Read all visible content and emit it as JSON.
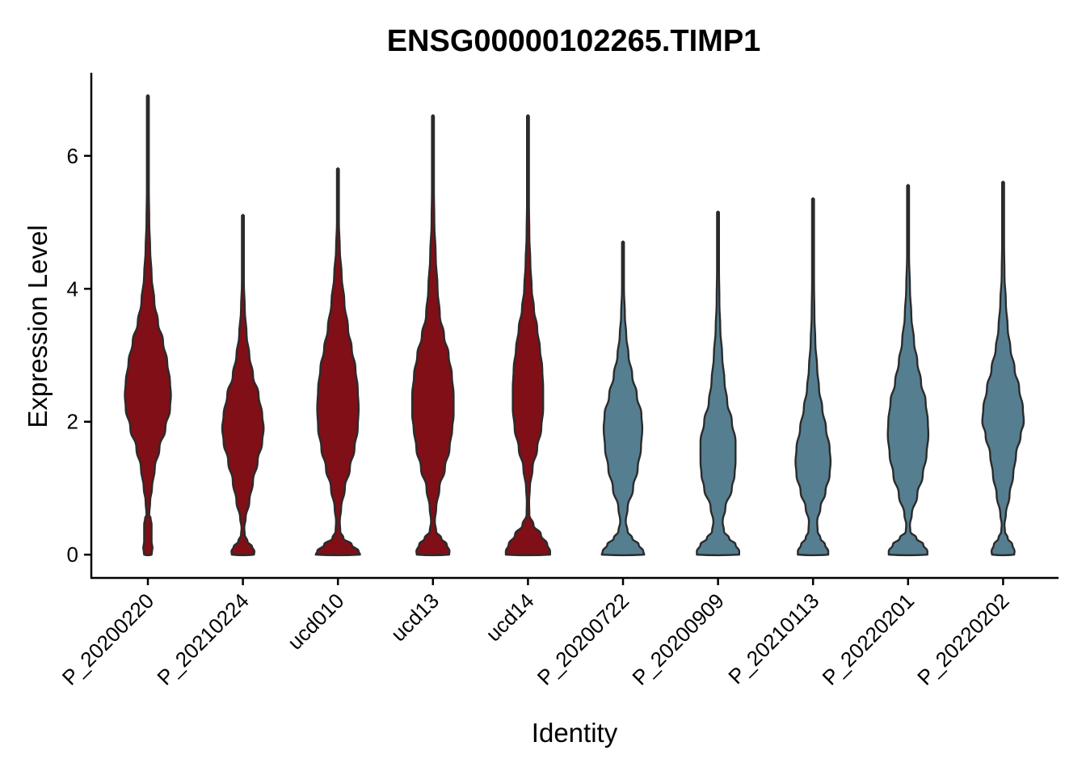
{
  "chart_data": {
    "type": "violin",
    "title": "ENSG00000102265.TIMP1",
    "xlabel": "Identity",
    "ylabel": "Expression Level",
    "ylim": [
      -0.35,
      7.25
    ],
    "y_ticks": [
      0,
      2,
      4,
      6
    ],
    "grid": false,
    "legend": "none",
    "groups": [
      {
        "name": "P_20200220",
        "color": "#800f17",
        "max": 6.9,
        "profile": [
          [
            0,
            0.08
          ],
          [
            0.05,
            0.09
          ],
          [
            0.1,
            0.1
          ],
          [
            0.2,
            0.08
          ],
          [
            0.3,
            0.08
          ],
          [
            0.45,
            0.08
          ],
          [
            0.55,
            0.06
          ],
          [
            0.6,
            0.03
          ],
          [
            0.8,
            0.05
          ],
          [
            1.0,
            0.09
          ],
          [
            1.3,
            0.15
          ],
          [
            1.6,
            0.25
          ],
          [
            1.9,
            0.38
          ],
          [
            2.2,
            0.48
          ],
          [
            2.4,
            0.5
          ],
          [
            2.6,
            0.48
          ],
          [
            2.9,
            0.42
          ],
          [
            3.2,
            0.33
          ],
          [
            3.5,
            0.22
          ],
          [
            3.8,
            0.14
          ],
          [
            4.2,
            0.08
          ],
          [
            4.6,
            0.05
          ],
          [
            5.0,
            0.03
          ],
          [
            5.5,
            0.02
          ],
          [
            6.0,
            0.01
          ],
          [
            6.5,
            0.008
          ],
          [
            6.9,
            0.004
          ]
        ]
      },
      {
        "name": "P_20210224",
        "color": "#800f17",
        "max": 5.1,
        "profile": [
          [
            0,
            0.24
          ],
          [
            0.05,
            0.25
          ],
          [
            0.12,
            0.2
          ],
          [
            0.2,
            0.1
          ],
          [
            0.3,
            0.04
          ],
          [
            0.4,
            0.03
          ],
          [
            0.55,
            0.06
          ],
          [
            0.8,
            0.14
          ],
          [
            1.1,
            0.22
          ],
          [
            1.4,
            0.32
          ],
          [
            1.7,
            0.42
          ],
          [
            1.9,
            0.45
          ],
          [
            2.1,
            0.42
          ],
          [
            2.4,
            0.34
          ],
          [
            2.7,
            0.22
          ],
          [
            3.0,
            0.14
          ],
          [
            3.3,
            0.08
          ],
          [
            3.7,
            0.04
          ],
          [
            4.1,
            0.02
          ],
          [
            4.5,
            0.01
          ],
          [
            5.1,
            0.004
          ]
        ]
      },
      {
        "name": "ucd010",
        "color": "#800f17",
        "max": 5.8,
        "profile": [
          [
            0,
            0.48
          ],
          [
            0.05,
            0.45
          ],
          [
            0.15,
            0.3
          ],
          [
            0.25,
            0.12
          ],
          [
            0.35,
            0.05
          ],
          [
            0.5,
            0.04
          ],
          [
            0.7,
            0.07
          ],
          [
            1.0,
            0.15
          ],
          [
            1.3,
            0.26
          ],
          [
            1.6,
            0.36
          ],
          [
            1.9,
            0.43
          ],
          [
            2.2,
            0.45
          ],
          [
            2.5,
            0.43
          ],
          [
            2.8,
            0.38
          ],
          [
            3.1,
            0.3
          ],
          [
            3.4,
            0.22
          ],
          [
            3.8,
            0.14
          ],
          [
            4.2,
            0.08
          ],
          [
            4.6,
            0.04
          ],
          [
            5.0,
            0.02
          ],
          [
            5.4,
            0.01
          ],
          [
            5.8,
            0.004
          ]
        ]
      },
      {
        "name": "ucd13",
        "color": "#800f17",
        "max": 6.6,
        "profile": [
          [
            0,
            0.35
          ],
          [
            0.05,
            0.36
          ],
          [
            0.15,
            0.3
          ],
          [
            0.25,
            0.18
          ],
          [
            0.35,
            0.07
          ],
          [
            0.5,
            0.04
          ],
          [
            0.7,
            0.07
          ],
          [
            1.0,
            0.14
          ],
          [
            1.3,
            0.26
          ],
          [
            1.6,
            0.36
          ],
          [
            1.9,
            0.42
          ],
          [
            2.1,
            0.45
          ],
          [
            2.4,
            0.45
          ],
          [
            2.7,
            0.41
          ],
          [
            3.0,
            0.34
          ],
          [
            3.3,
            0.24
          ],
          [
            3.6,
            0.15
          ],
          [
            4.0,
            0.1
          ],
          [
            4.5,
            0.06
          ],
          [
            5.0,
            0.03
          ],
          [
            5.5,
            0.02
          ],
          [
            6.0,
            0.01
          ],
          [
            6.6,
            0.004
          ]
        ]
      },
      {
        "name": "ucd14",
        "color": "#800f17",
        "max": 6.6,
        "profile": [
          [
            0,
            0.48
          ],
          [
            0.05,
            0.48
          ],
          [
            0.15,
            0.42
          ],
          [
            0.3,
            0.28
          ],
          [
            0.45,
            0.12
          ],
          [
            0.6,
            0.03
          ],
          [
            0.8,
            0.025
          ],
          [
            1.0,
            0.04
          ],
          [
            1.3,
            0.1
          ],
          [
            1.6,
            0.2
          ],
          [
            1.9,
            0.29
          ],
          [
            2.2,
            0.33
          ],
          [
            2.5,
            0.33
          ],
          [
            2.8,
            0.31
          ],
          [
            3.1,
            0.26
          ],
          [
            3.4,
            0.2
          ],
          [
            3.7,
            0.13
          ],
          [
            4.0,
            0.08
          ],
          [
            4.4,
            0.05
          ],
          [
            4.8,
            0.03
          ],
          [
            5.3,
            0.02
          ],
          [
            5.8,
            0.01
          ],
          [
            6.6,
            0.004
          ]
        ]
      },
      {
        "name": "P_20200722",
        "color": "#557f91",
        "max": 4.7,
        "profile": [
          [
            0,
            0.46
          ],
          [
            0.05,
            0.44
          ],
          [
            0.15,
            0.34
          ],
          [
            0.25,
            0.2
          ],
          [
            0.35,
            0.1
          ],
          [
            0.5,
            0.06
          ],
          [
            0.7,
            0.1
          ],
          [
            1.0,
            0.22
          ],
          [
            1.3,
            0.32
          ],
          [
            1.6,
            0.39
          ],
          [
            1.9,
            0.42
          ],
          [
            2.1,
            0.4
          ],
          [
            2.4,
            0.3
          ],
          [
            2.7,
            0.2
          ],
          [
            3.0,
            0.12
          ],
          [
            3.3,
            0.07
          ],
          [
            3.6,
            0.04
          ],
          [
            4.0,
            0.02
          ],
          [
            4.7,
            0.004
          ]
        ]
      },
      {
        "name": "P_20200909",
        "color": "#557f91",
        "max": 5.15,
        "profile": [
          [
            0,
            0.46
          ],
          [
            0.05,
            0.46
          ],
          [
            0.15,
            0.38
          ],
          [
            0.25,
            0.24
          ],
          [
            0.35,
            0.13
          ],
          [
            0.5,
            0.1
          ],
          [
            0.7,
            0.16
          ],
          [
            1.0,
            0.3
          ],
          [
            1.2,
            0.36
          ],
          [
            1.4,
            0.38
          ],
          [
            1.7,
            0.38
          ],
          [
            2.0,
            0.3
          ],
          [
            2.3,
            0.2
          ],
          [
            2.6,
            0.14
          ],
          [
            3.0,
            0.09
          ],
          [
            3.4,
            0.05
          ],
          [
            3.8,
            0.03
          ],
          [
            4.3,
            0.015
          ],
          [
            5.15,
            0.004
          ]
        ]
      },
      {
        "name": "P_20210113",
        "color": "#557f91",
        "max": 5.35,
        "profile": [
          [
            0,
            0.33
          ],
          [
            0.05,
            0.33
          ],
          [
            0.15,
            0.26
          ],
          [
            0.25,
            0.16
          ],
          [
            0.35,
            0.1
          ],
          [
            0.5,
            0.09
          ],
          [
            0.7,
            0.16
          ],
          [
            0.95,
            0.27
          ],
          [
            1.2,
            0.36
          ],
          [
            1.4,
            0.38
          ],
          [
            1.6,
            0.36
          ],
          [
            1.9,
            0.28
          ],
          [
            2.2,
            0.2
          ],
          [
            2.5,
            0.13
          ],
          [
            2.8,
            0.09
          ],
          [
            3.2,
            0.05
          ],
          [
            3.6,
            0.03
          ],
          [
            4.1,
            0.015
          ],
          [
            5.35,
            0.004
          ]
        ]
      },
      {
        "name": "P_20220201",
        "color": "#557f91",
        "max": 5.55,
        "profile": [
          [
            0,
            0.42
          ],
          [
            0.05,
            0.42
          ],
          [
            0.15,
            0.33
          ],
          [
            0.25,
            0.18
          ],
          [
            0.35,
            0.05
          ],
          [
            0.45,
            0.04
          ],
          [
            0.6,
            0.08
          ],
          [
            0.9,
            0.2
          ],
          [
            1.2,
            0.32
          ],
          [
            1.5,
            0.4
          ],
          [
            1.8,
            0.44
          ],
          [
            2.0,
            0.43
          ],
          [
            2.3,
            0.38
          ],
          [
            2.6,
            0.28
          ],
          [
            2.9,
            0.2
          ],
          [
            3.2,
            0.13
          ],
          [
            3.6,
            0.07
          ],
          [
            4.0,
            0.04
          ],
          [
            4.5,
            0.02
          ],
          [
            5.55,
            0.004
          ]
        ]
      },
      {
        "name": "P_20220202",
        "color": "#557f91",
        "max": 5.6,
        "profile": [
          [
            0,
            0.24
          ],
          [
            0.05,
            0.25
          ],
          [
            0.15,
            0.2
          ],
          [
            0.25,
            0.1
          ],
          [
            0.35,
            0.04
          ],
          [
            0.45,
            0.03
          ],
          [
            0.6,
            0.06
          ],
          [
            0.9,
            0.14
          ],
          [
            1.2,
            0.22
          ],
          [
            1.5,
            0.28
          ],
          [
            1.8,
            0.38
          ],
          [
            2.0,
            0.45
          ],
          [
            2.2,
            0.43
          ],
          [
            2.5,
            0.35
          ],
          [
            2.8,
            0.25
          ],
          [
            3.1,
            0.16
          ],
          [
            3.4,
            0.1
          ],
          [
            3.8,
            0.06
          ],
          [
            4.2,
            0.03
          ],
          [
            4.7,
            0.015
          ],
          [
            5.6,
            0.004
          ]
        ]
      }
    ]
  }
}
